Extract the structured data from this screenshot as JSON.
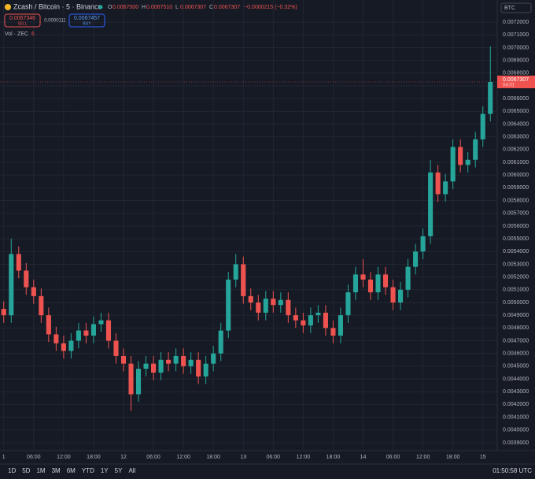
{
  "header": {
    "symbol": "Zcash / Bitcoin · 5 · Binance",
    "o_label": "O",
    "open": "0.0067500",
    "h_label": "H",
    "high": "0.0067510",
    "l_label": "L",
    "low": "0.0067307",
    "c_label": "C",
    "close": "0.0067307",
    "change": "−0.0000215 (−0.32%)",
    "sell_price": "0.0067346",
    "sell": "SELL",
    "spread": "0.0000111",
    "buy_price": "0.0067457",
    "buy": "BUY",
    "volume_label": "Vol · ZEC",
    "volume_value": "6",
    "currency": "BTC"
  },
  "toolbar": {
    "ranges": [
      "1D",
      "5D",
      "1M",
      "3M",
      "6M",
      "YTD",
      "1Y",
      "5Y",
      "All"
    ],
    "clock": "01:50:58 UTC"
  },
  "chart_data": {
    "type": "candlestick",
    "up_color": "#26a69a",
    "down_color": "#ef5350",
    "grid": true,
    "open": [
      0.00495,
      0.0049,
      0.00538,
      0.00525,
      0.00512,
      0.00505,
      0.0049,
      0.00475,
      0.00468,
      0.00462,
      0.0047,
      0.00478,
      0.00474,
      0.00483,
      0.00486,
      0.0047,
      0.00458,
      0.00452,
      0.00428,
      0.00448,
      0.00452,
      0.00445,
      0.00455,
      0.00452,
      0.00458,
      0.0045,
      0.00455,
      0.00442,
      0.00452,
      0.0046,
      0.00478,
      0.00518,
      0.0053,
      0.00505,
      0.005,
      0.00492,
      0.00503,
      0.00498,
      0.00502,
      0.0049,
      0.00486,
      0.00482,
      0.0049,
      0.00492,
      0.0048,
      0.00474,
      0.0049,
      0.00508,
      0.00522,
      0.00518,
      0.00508,
      0.00522,
      0.00512,
      0.005,
      0.0051,
      0.00528,
      0.0054,
      0.00552,
      0.00602,
      0.00585,
      0.00595,
      0.00622,
      0.00608,
      0.00612,
      0.00628,
      0.00648
    ],
    "high": [
      0.00501,
      0.0055,
      0.00544,
      0.00531,
      0.00518,
      0.00511,
      0.00496,
      0.00481,
      0.00474,
      0.00476,
      0.00484,
      0.00484,
      0.00489,
      0.00492,
      0.00492,
      0.00476,
      0.00464,
      0.00458,
      0.00454,
      0.00458,
      0.00458,
      0.00461,
      0.00461,
      0.00464,
      0.00464,
      0.00461,
      0.00461,
      0.00458,
      0.00466,
      0.00484,
      0.00524,
      0.00538,
      0.00536,
      0.00511,
      0.00506,
      0.00509,
      0.00509,
      0.00508,
      0.00508,
      0.00496,
      0.00492,
      0.00496,
      0.00498,
      0.00498,
      0.00486,
      0.00496,
      0.00514,
      0.00528,
      0.00534,
      0.00524,
      0.00528,
      0.00528,
      0.00518,
      0.00516,
      0.00534,
      0.00546,
      0.00558,
      0.00612,
      0.00608,
      0.00601,
      0.00628,
      0.00628,
      0.00618,
      0.00634,
      0.00654,
      0.00701
    ],
    "low": [
      0.00484,
      0.00484,
      0.00519,
      0.00506,
      0.00499,
      0.00484,
      0.00469,
      0.00462,
      0.00456,
      0.00456,
      0.00464,
      0.00468,
      0.00468,
      0.00477,
      0.00464,
      0.00452,
      0.00446,
      0.00415,
      0.00422,
      0.00442,
      0.00439,
      0.00439,
      0.00446,
      0.00446,
      0.00444,
      0.00444,
      0.00436,
      0.00436,
      0.00446,
      0.00454,
      0.00472,
      0.00512,
      0.00499,
      0.00494,
      0.00486,
      0.00486,
      0.00492,
      0.00492,
      0.00484,
      0.0048,
      0.00476,
      0.00476,
      0.00484,
      0.00474,
      0.00468,
      0.00468,
      0.00484,
      0.00502,
      0.00512,
      0.00502,
      0.00502,
      0.00506,
      0.00494,
      0.00494,
      0.00504,
      0.00522,
      0.00534,
      0.00546,
      0.00579,
      0.00579,
      0.00589,
      0.00602,
      0.00602,
      0.00606,
      0.00622,
      0.00642
    ],
    "close": [
      0.0049,
      0.00538,
      0.00525,
      0.00512,
      0.00505,
      0.0049,
      0.00475,
      0.00468,
      0.00462,
      0.0047,
      0.00478,
      0.00474,
      0.00483,
      0.00486,
      0.0047,
      0.00458,
      0.00452,
      0.00428,
      0.00448,
      0.00452,
      0.00445,
      0.00455,
      0.00452,
      0.00458,
      0.0045,
      0.00455,
      0.00442,
      0.00452,
      0.0046,
      0.00478,
      0.00518,
      0.0053,
      0.00505,
      0.005,
      0.00492,
      0.00503,
      0.00498,
      0.00502,
      0.0049,
      0.00486,
      0.00482,
      0.0049,
      0.00492,
      0.0048,
      0.00474,
      0.0049,
      0.00508,
      0.00522,
      0.00518,
      0.00508,
      0.00522,
      0.00512,
      0.005,
      0.0051,
      0.00528,
      0.0054,
      0.00552,
      0.00602,
      0.00585,
      0.00595,
      0.00622,
      0.00608,
      0.00612,
      0.00628,
      0.00648,
      0.0067307
    ],
    "last_price_label": "0.0067307",
    "last_time_label": "04:01",
    "xlim": [
      -0.5,
      65.5
    ],
    "xticks": [
      {
        "value": 0,
        "label": "1"
      },
      {
        "value": 4,
        "label": "06:00"
      },
      {
        "value": 8,
        "label": "12:00"
      },
      {
        "value": 12,
        "label": "18:00"
      },
      {
        "value": 16,
        "label": "12"
      },
      {
        "value": 20,
        "label": "06:00"
      },
      {
        "value": 24,
        "label": "12:00"
      },
      {
        "value": 28,
        "label": "18:00"
      },
      {
        "value": 32,
        "label": "13"
      },
      {
        "value": 36,
        "label": "06:00"
      },
      {
        "value": 40,
        "label": "12:00"
      },
      {
        "value": 44,
        "label": "18:00"
      },
      {
        "value": 48,
        "label": "14"
      },
      {
        "value": 52,
        "label": "06:00"
      },
      {
        "value": 56,
        "label": "12:00"
      },
      {
        "value": 60,
        "label": "18:00"
      },
      {
        "value": 64,
        "label": "15"
      }
    ],
    "ylim": [
      0.00385,
      0.00725
    ],
    "yticks": [
      {
        "value": 0.0039,
        "label": "0.0039000"
      },
      {
        "value": 0.004,
        "label": "0.0040000"
      },
      {
        "value": 0.0041,
        "label": "0.0041000"
      },
      {
        "value": 0.0042,
        "label": "0.0042000"
      },
      {
        "value": 0.0043,
        "label": "0.0043000"
      },
      {
        "value": 0.0044,
        "label": "0.0044000"
      },
      {
        "value": 0.0045,
        "label": "0.0045000"
      },
      {
        "value": 0.0046,
        "label": "0.0046000"
      },
      {
        "value": 0.0047,
        "label": "0.0047000"
      },
      {
        "value": 0.0048,
        "label": "0.0048000"
      },
      {
        "value": 0.0049,
        "label": "0.0049000"
      },
      {
        "value": 0.005,
        "label": "0.0050000"
      },
      {
        "value": 0.0051,
        "label": "0.0051000"
      },
      {
        "value": 0.0052,
        "label": "0.0052000"
      },
      {
        "value": 0.0053,
        "label": "0.0053000"
      },
      {
        "value": 0.0054,
        "label": "0.0054000"
      },
      {
        "value": 0.0055,
        "label": "0.0055000"
      },
      {
        "value": 0.0056,
        "label": "0.0056000"
      },
      {
        "value": 0.0057,
        "label": "0.0057000"
      },
      {
        "value": 0.0058,
        "label": "0.0058000"
      },
      {
        "value": 0.0059,
        "label": "0.0059000"
      },
      {
        "value": 0.006,
        "label": "0.0060000"
      },
      {
        "value": 0.0061,
        "label": "0.0061000"
      },
      {
        "value": 0.0062,
        "label": "0.0062000"
      },
      {
        "value": 0.0063,
        "label": "0.0063000"
      },
      {
        "value": 0.0064,
        "label": "0.0064000"
      },
      {
        "value": 0.0065,
        "label": "0.0065000"
      },
      {
        "value": 0.0066,
        "label": "0.0066000"
      },
      {
        "value": 0.0067,
        "label": "0.0067000"
      },
      {
        "value": 0.0068,
        "label": "0.0068000"
      },
      {
        "value": 0.0069,
        "label": "0.0069000"
      },
      {
        "value": 0.007,
        "label": "0.0070000"
      },
      {
        "value": 0.0071,
        "label": "0.0071000"
      },
      {
        "value": 0.0072,
        "label": "0.0072000"
      }
    ]
  }
}
